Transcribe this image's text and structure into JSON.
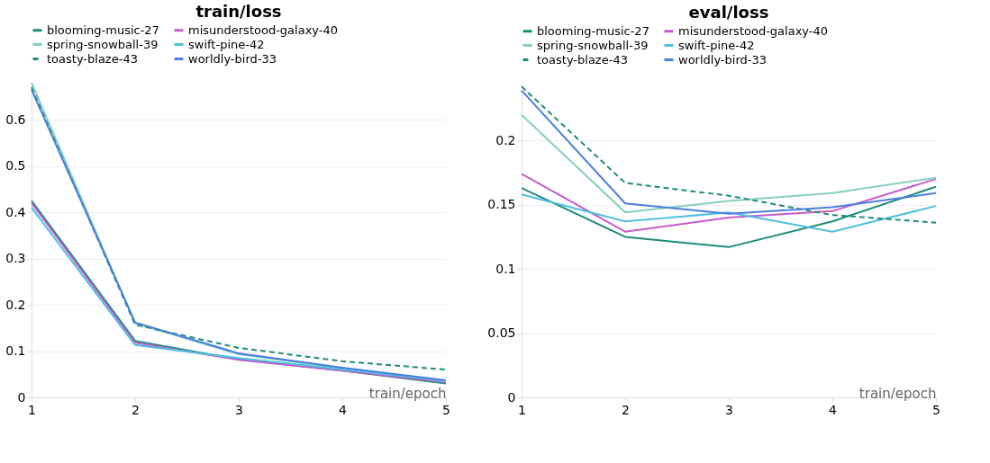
{
  "chart_data": [
    {
      "type": "line",
      "title": "train/loss",
      "xlabel": "train/epoch",
      "x": [
        1,
        2,
        3,
        4,
        5
      ],
      "xlim": [
        1,
        5
      ],
      "xticks": [
        1,
        2,
        3,
        4,
        5
      ],
      "ylim": [
        0,
        0.68
      ],
      "yticks": [
        0,
        0.1,
        0.2,
        0.3,
        0.4,
        0.5,
        0.6
      ],
      "grid": "y",
      "legend": "top",
      "series": [
        {
          "name": "blooming-music-27",
          "color": "#1f8c7a",
          "line_style": "solid",
          "values": [
            0.425,
            0.122,
            0.082,
            0.058,
            0.03
          ]
        },
        {
          "name": "misunderstood-galaxy-40",
          "color": "#c45ccc",
          "line_style": "solid",
          "values": [
            0.42,
            0.118,
            0.081,
            0.058,
            0.033
          ]
        },
        {
          "name": "spring-snowball-39",
          "color": "#85d0bd",
          "line_style": "solid",
          "values": [
            0.68,
            0.16,
            0.093,
            0.062,
            0.035
          ]
        },
        {
          "name": "swift-pine-42",
          "color": "#4fc0dd",
          "line_style": "solid",
          "values": [
            0.41,
            0.113,
            0.085,
            0.06,
            0.036
          ]
        },
        {
          "name": "toasty-blaze-43",
          "color": "#1f8c7a",
          "line_style": "dashed",
          "values": [
            0.67,
            0.157,
            0.107,
            0.078,
            0.06
          ]
        },
        {
          "name": "worldly-bird-33",
          "color": "#4a7fe0",
          "line_style": "solid",
          "values": [
            0.665,
            0.162,
            0.095,
            0.064,
            0.037
          ]
        }
      ]
    },
    {
      "type": "line",
      "title": "eval/loss",
      "xlabel": "train/epoch",
      "x": [
        1,
        2,
        3,
        4,
        5
      ],
      "xlim": [
        1,
        5
      ],
      "xticks": [
        1,
        2,
        3,
        4,
        5
      ],
      "ylim": [
        0,
        0.245
      ],
      "yticks": [
        0,
        0.05,
        0.1,
        0.15,
        0.2
      ],
      "grid": "y",
      "legend": "top",
      "series": [
        {
          "name": "blooming-music-27",
          "color": "#1f8c7a",
          "line_style": "solid",
          "values": [
            0.163,
            0.125,
            0.117,
            0.137,
            0.164
          ]
        },
        {
          "name": "misunderstood-galaxy-40",
          "color": "#c45ccc",
          "line_style": "solid",
          "values": [
            0.174,
            0.129,
            0.14,
            0.145,
            0.17
          ]
        },
        {
          "name": "spring-snowball-39",
          "color": "#85d0bd",
          "line_style": "solid",
          "values": [
            0.22,
            0.144,
            0.153,
            0.159,
            0.171
          ]
        },
        {
          "name": "swift-pine-42",
          "color": "#4fc0dd",
          "line_style": "solid",
          "values": [
            0.158,
            0.137,
            0.144,
            0.129,
            0.149
          ]
        },
        {
          "name": "toasty-blaze-43",
          "color": "#1f8c7a",
          "line_style": "dashed",
          "values": [
            0.242,
            0.167,
            0.157,
            0.142,
            0.136
          ]
        },
        {
          "name": "worldly-bird-33",
          "color": "#4a7fe0",
          "line_style": "solid",
          "values": [
            0.239,
            0.151,
            0.143,
            0.148,
            0.159
          ]
        }
      ]
    }
  ]
}
